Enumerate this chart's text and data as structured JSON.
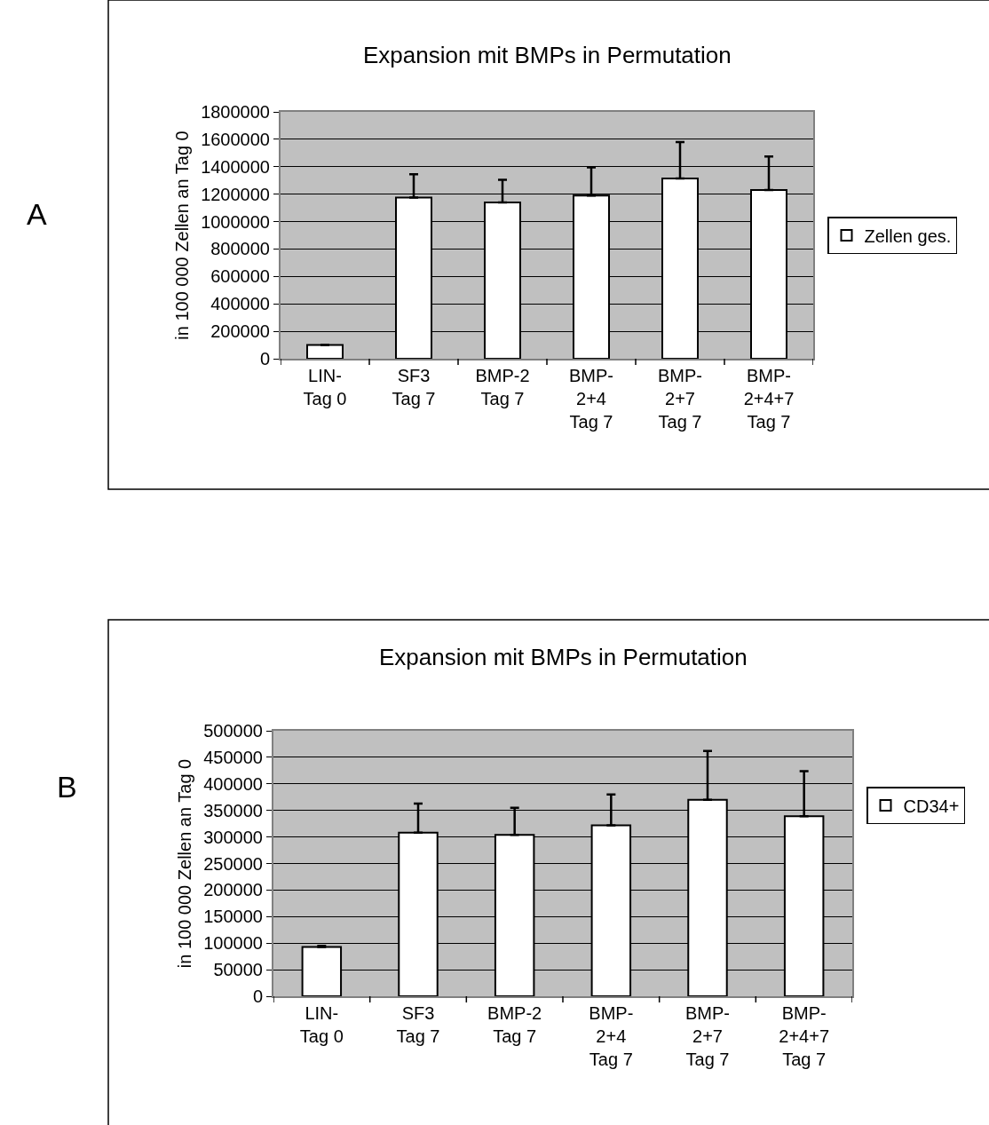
{
  "chart_data": [
    {
      "type": "bar",
      "title": "Expansion mit BMPs in Permutation",
      "ylabel": "in 100 000 Zellen an Tag 0",
      "annotations": [
        "A"
      ],
      "categories": [
        "LIN-\nTag 0",
        "SF3\nTag 7",
        "BMP-2\nTag 7",
        "BMP-\n2+4\nTag 7",
        "BMP-\n2+7\nTag 7",
        "BMP-\n2+4+7\nTag 7"
      ],
      "series": [
        {
          "name": "Zellen ges.",
          "color": "#ffffff",
          "values": [
            100000,
            1175000,
            1140000,
            1190000,
            1315000,
            1230000
          ],
          "errors": [
            [
              100000,
              100000
            ],
            [
              1175000,
              1345000
            ],
            [
              1140000,
              1305000
            ],
            [
              1190000,
              1395000
            ],
            [
              1315000,
              1580000
            ],
            [
              1230000,
              1475000
            ]
          ]
        }
      ],
      "ylim": [
        0,
        1800000
      ],
      "yticks": [
        0,
        200000,
        400000,
        600000,
        800000,
        1000000,
        1200000,
        1400000,
        1600000,
        1800000
      ],
      "grid": "y",
      "legend": "right"
    },
    {
      "type": "bar",
      "title": "Expansion mit BMPs in Permutation",
      "ylabel": "in 100 000 Zellen an Tag 0",
      "annotations": [
        "B"
      ],
      "categories": [
        "LIN-\nTag 0",
        "SF3\nTag 7",
        "BMP-2\nTag 7",
        "BMP-\n2+4\nTag 7",
        "BMP-\n2+7\nTag 7",
        "BMP-\n2+4+7\nTag 7"
      ],
      "series": [
        {
          "name": "CD34+",
          "color": "#ffffff",
          "values": [
            93000,
            308000,
            304000,
            322000,
            370000,
            339000
          ],
          "errors": [
            [
              93000,
              95000
            ],
            [
              308000,
              363000
            ],
            [
              304000,
              355000
            ],
            [
              322000,
              380000
            ],
            [
              370000,
              462000
            ],
            [
              339000,
              424000
            ]
          ]
        }
      ],
      "ylim": [
        0,
        500000
      ],
      "yticks": [
        0,
        50000,
        100000,
        150000,
        200000,
        250000,
        300000,
        350000,
        400000,
        450000,
        500000
      ],
      "grid": "y",
      "legend": "right"
    }
  ]
}
